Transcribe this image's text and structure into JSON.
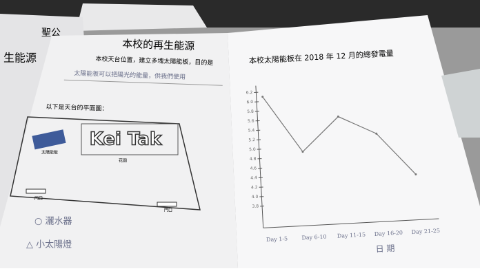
{
  "left_sheet": {
    "back_title": "聖公",
    "side_title": "生能源",
    "title": "本校的再生能源",
    "line1": "本校天台位置，建立多塊太陽能板，目的是",
    "line2": "太陽能板可以把陽光的能量，供我們使用",
    "plan_caption": "以下是天台的平面圖：",
    "logo": "Kei Tak",
    "panel_label": "太陽能板",
    "garden": "花園",
    "door1": "門口",
    "door2": "門口",
    "legend1": "○ 灑水器",
    "legend2": "△ 小太陽燈"
  },
  "chart_data": {
    "type": "line",
    "title": "本校太陽能板在 2018 年 12 月的總發電量",
    "categories": [
      "Day 1-5",
      "Day 6-10",
      "Day 11-15",
      "Day 16-20",
      "Day 21-25"
    ],
    "values": [
      6.1,
      4.9,
      5.6,
      5.2,
      4.3
    ],
    "color": "#777777",
    "xlabel": "日 期",
    "ylim": [
      3.34,
      6.34
    ],
    "yticks": [
      3.8,
      {
        "value": 4,
        "label": "4.0"
      },
      4.2,
      4.4,
      4.6,
      4.8,
      {
        "value": 5,
        "label": "5.0"
      },
      5.2,
      5.4,
      5.6,
      5.8,
      {
        "value": 6,
        "label": "6.0"
      },
      6.2
    ]
  }
}
